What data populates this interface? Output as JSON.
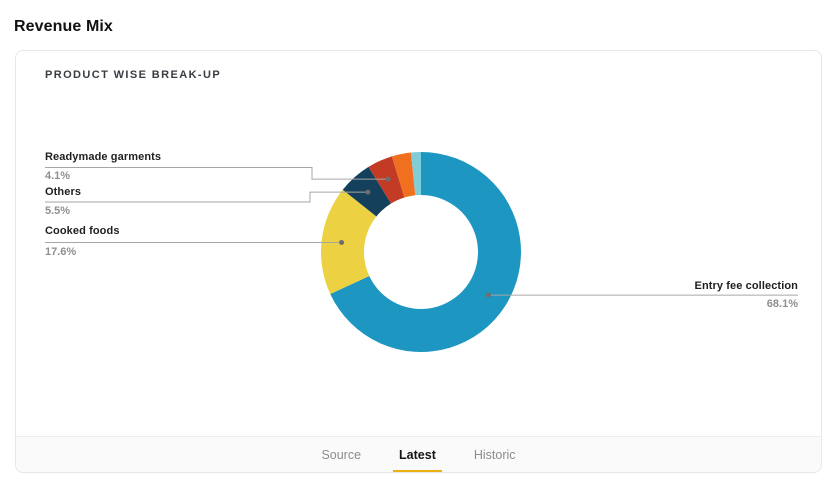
{
  "page": {
    "title": "Revenue Mix"
  },
  "card": {
    "header": "PRODUCT WISE BREAK-UP"
  },
  "footer": {
    "tabs": [
      {
        "label": "Source",
        "active": false
      },
      {
        "label": "Latest",
        "active": true
      },
      {
        "label": "Historic",
        "active": false
      }
    ],
    "active_underline_color": "#ecb113"
  },
  "chart_data": {
    "type": "pie",
    "subtype": "donut",
    "title": "PRODUCT WISE BREAK-UP",
    "unit": "%",
    "direction": "clockwise",
    "start_angle_deg": 0,
    "inner_radius_ratio": 0.57,
    "legend": "none",
    "series": [
      {
        "name": "Entry fee collection",
        "value": 68.1,
        "display": "68.1%",
        "color": "#1d96c1",
        "labeled": true,
        "label_side": "right"
      },
      {
        "name": "Cooked foods",
        "value": 17.6,
        "display": "17.6%",
        "color": "#ecd242",
        "labeled": true,
        "label_side": "left"
      },
      {
        "name": "Others",
        "value": 5.5,
        "display": "5.5%",
        "color": "#15405b",
        "labeled": true,
        "label_side": "left"
      },
      {
        "name": "Readymade garments",
        "value": 4.1,
        "display": "4.1%",
        "color": "#c33b25",
        "labeled": true,
        "label_side": "left"
      },
      {
        "name": "",
        "value": 3.1,
        "display": "",
        "color": "#f17020",
        "labeled": false,
        "label_side": "none"
      },
      {
        "name": "",
        "value": 1.6,
        "display": "",
        "color": "#80cdd7",
        "labeled": false,
        "label_side": "none"
      }
    ],
    "connector_color": "#a6a6a6",
    "dot_color": "#6e6e6e"
  }
}
